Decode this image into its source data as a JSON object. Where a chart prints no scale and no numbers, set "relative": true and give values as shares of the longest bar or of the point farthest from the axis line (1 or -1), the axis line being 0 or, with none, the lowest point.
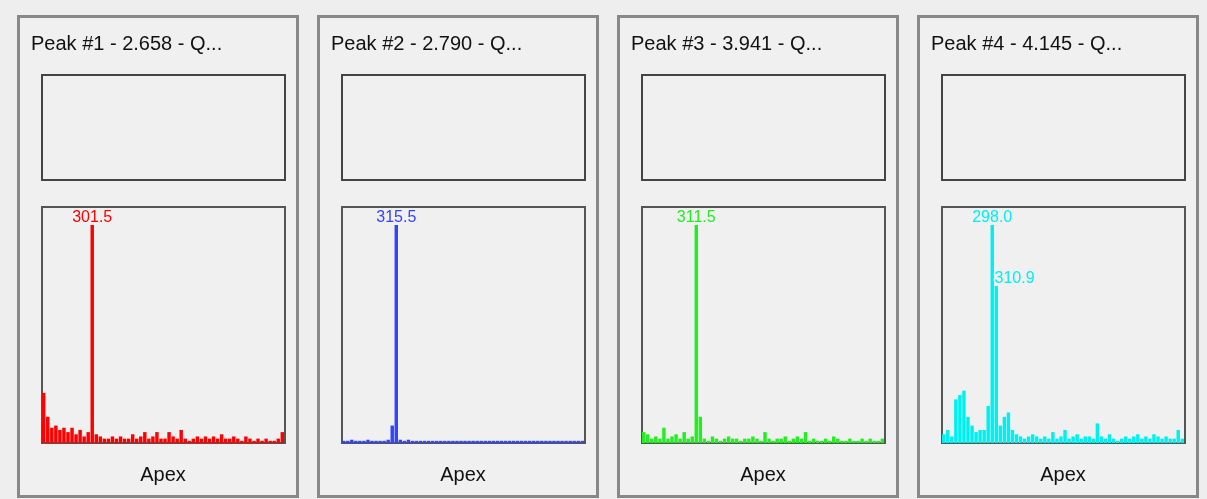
{
  "chart_data": [
    {
      "type": "bar",
      "title": "Peak #1 - 2.658 - Q...",
      "xlabel": "Apex",
      "relative": true,
      "color": "#ff0000",
      "categories": [
        null,
        null,
        null,
        null,
        null,
        null,
        null,
        null,
        null,
        null,
        null,
        null,
        null,
        null,
        null,
        null,
        null,
        null,
        null,
        null,
        null,
        null,
        null,
        null,
        null,
        null,
        null,
        null,
        null,
        null,
        null,
        null,
        null,
        null,
        null,
        null,
        null,
        null,
        null,
        null,
        null,
        null,
        null,
        null,
        null,
        null,
        null,
        null,
        null,
        null,
        null,
        null,
        null,
        null,
        null,
        null,
        null,
        null,
        null,
        null
      ],
      "values": [
        0.23,
        0.12,
        0.07,
        0.08,
        0.06,
        0.07,
        0.05,
        0.07,
        0.04,
        0.06,
        0.03,
        0.05,
        1,
        0.04,
        0.03,
        0.02,
        0.02,
        0.03,
        0.02,
        0.03,
        0.02,
        0.02,
        0.04,
        0.02,
        0.03,
        0.05,
        0.02,
        0.03,
        0.05,
        0.02,
        0.02,
        0.05,
        0.03,
        0.02,
        0.06,
        0.02,
        0.01,
        0.02,
        0.03,
        0.02,
        0.03,
        0.02,
        0.03,
        0.02,
        0.04,
        0.02,
        0.02,
        0.03,
        0.02,
        0.01,
        0.03,
        0.02,
        0.01,
        0.02,
        0.01,
        0.02,
        0.01,
        0.01,
        0.02,
        0.05
      ],
      "annotations": [
        "301.5"
      ]
    },
    {
      "type": "bar",
      "title": "Peak #2 - 2.790 - Q...",
      "xlabel": "Apex",
      "relative": true,
      "color": "#3344ff",
      "categories": [
        null,
        null,
        null,
        null,
        null,
        null,
        null,
        null,
        null,
        null,
        null,
        null,
        null,
        null,
        null,
        null,
        null,
        null,
        null,
        null,
        null,
        null,
        null,
        null,
        null,
        null,
        null,
        null,
        null,
        null,
        null,
        null,
        null,
        null,
        null,
        null,
        null,
        null,
        null,
        null,
        null,
        null,
        null,
        null,
        null,
        null,
        null,
        null,
        null,
        null,
        null,
        null,
        null,
        null,
        null,
        null,
        null,
        null,
        null,
        null
      ],
      "values": [
        0.01,
        0.01,
        0.015,
        0.01,
        0.01,
        0.01,
        0.015,
        0.01,
        0.01,
        0.01,
        0.01,
        0.015,
        0.08,
        1,
        0.015,
        0.01,
        0.015,
        0.01,
        0.01,
        0.01,
        0.01,
        0.01,
        0.01,
        0.01,
        0.01,
        0.01,
        0.01,
        0.01,
        0.01,
        0.01,
        0.01,
        0.01,
        0.01,
        0.01,
        0.01,
        0.01,
        0.01,
        0.01,
        0.01,
        0.01,
        0.01,
        0.01,
        0.01,
        0.01,
        0.01,
        0.01,
        0.01,
        0.01,
        0.01,
        0.01,
        0.01,
        0.01,
        0.01,
        0.01,
        0.01,
        0.01,
        0.01,
        0.01,
        0.01,
        0.01
      ],
      "annotations": [
        "315.5"
      ]
    },
    {
      "type": "bar",
      "title": "Peak #3 - 3.941 - Q...",
      "xlabel": "Apex",
      "relative": true,
      "color": "#22ee22",
      "categories": [
        null,
        null,
        null,
        null,
        null,
        null,
        null,
        null,
        null,
        null,
        null,
        null,
        null,
        null,
        null,
        null,
        null,
        null,
        null,
        null,
        null,
        null,
        null,
        null,
        null,
        null,
        null,
        null,
        null,
        null,
        null,
        null,
        null,
        null,
        null,
        null,
        null,
        null,
        null,
        null,
        null,
        null,
        null,
        null,
        null,
        null,
        null,
        null,
        null,
        null,
        null,
        null,
        null,
        null,
        null,
        null,
        null,
        null,
        null,
        null
      ],
      "values": [
        0.05,
        0.04,
        0.02,
        0.03,
        0.02,
        0.07,
        0.02,
        0.03,
        0.04,
        0.02,
        0.05,
        0.02,
        0.03,
        1,
        0.12,
        0.02,
        0.01,
        0.03,
        0.02,
        0.01,
        0.02,
        0.03,
        0.02,
        0.02,
        0.01,
        0.02,
        0.02,
        0.03,
        0.02,
        0.01,
        0.05,
        0.02,
        0.01,
        0.02,
        0.02,
        0.03,
        0.01,
        0.02,
        0.03,
        0.02,
        0.05,
        0.01,
        0.02,
        0.01,
        0.01,
        0.02,
        0.01,
        0.03,
        0.02,
        0.01,
        0.01,
        0.02,
        0.01,
        0.01,
        0.02,
        0.01,
        0.02,
        0.01,
        0.01,
        0.02
      ],
      "annotations": [
        "311.5"
      ]
    },
    {
      "type": "bar",
      "title": "Peak #4 - 4.145 - Q...",
      "xlabel": "Apex",
      "relative": true,
      "color": "#00f0f0",
      "categories": [
        null,
        null,
        null,
        null,
        null,
        null,
        null,
        null,
        null,
        null,
        null,
        null,
        null,
        null,
        null,
        null,
        null,
        null,
        null,
        null,
        null,
        null,
        null,
        null,
        null,
        null,
        null,
        null,
        null,
        null,
        null,
        null,
        null,
        null,
        null,
        null,
        null,
        null,
        null,
        null,
        null,
        null,
        null,
        null,
        null,
        null,
        null,
        null,
        null,
        null,
        null,
        null,
        null,
        null,
        null,
        null,
        null,
        null,
        null,
        null
      ],
      "values": [
        0.04,
        0.06,
        0.03,
        0.2,
        0.22,
        0.24,
        0.12,
        0.08,
        0.05,
        0.06,
        0.06,
        0.17,
        1,
        0.72,
        0.08,
        0.12,
        0.14,
        0.06,
        0.04,
        0.03,
        0.02,
        0.03,
        0.04,
        0.03,
        0.02,
        0.03,
        0.02,
        0.05,
        0.02,
        0.03,
        0.06,
        0.02,
        0.03,
        0.04,
        0.02,
        0.03,
        0.03,
        0.02,
        0.09,
        0.03,
        0.02,
        0.04,
        0.02,
        0.01,
        0.02,
        0.03,
        0.02,
        0.03,
        0.04,
        0.02,
        0.03,
        0.02,
        0.04,
        0.03,
        0.02,
        0.03,
        0.02,
        0.02,
        0.06,
        0.02
      ],
      "annotations": [
        "298.0",
        "310.9"
      ]
    }
  ]
}
